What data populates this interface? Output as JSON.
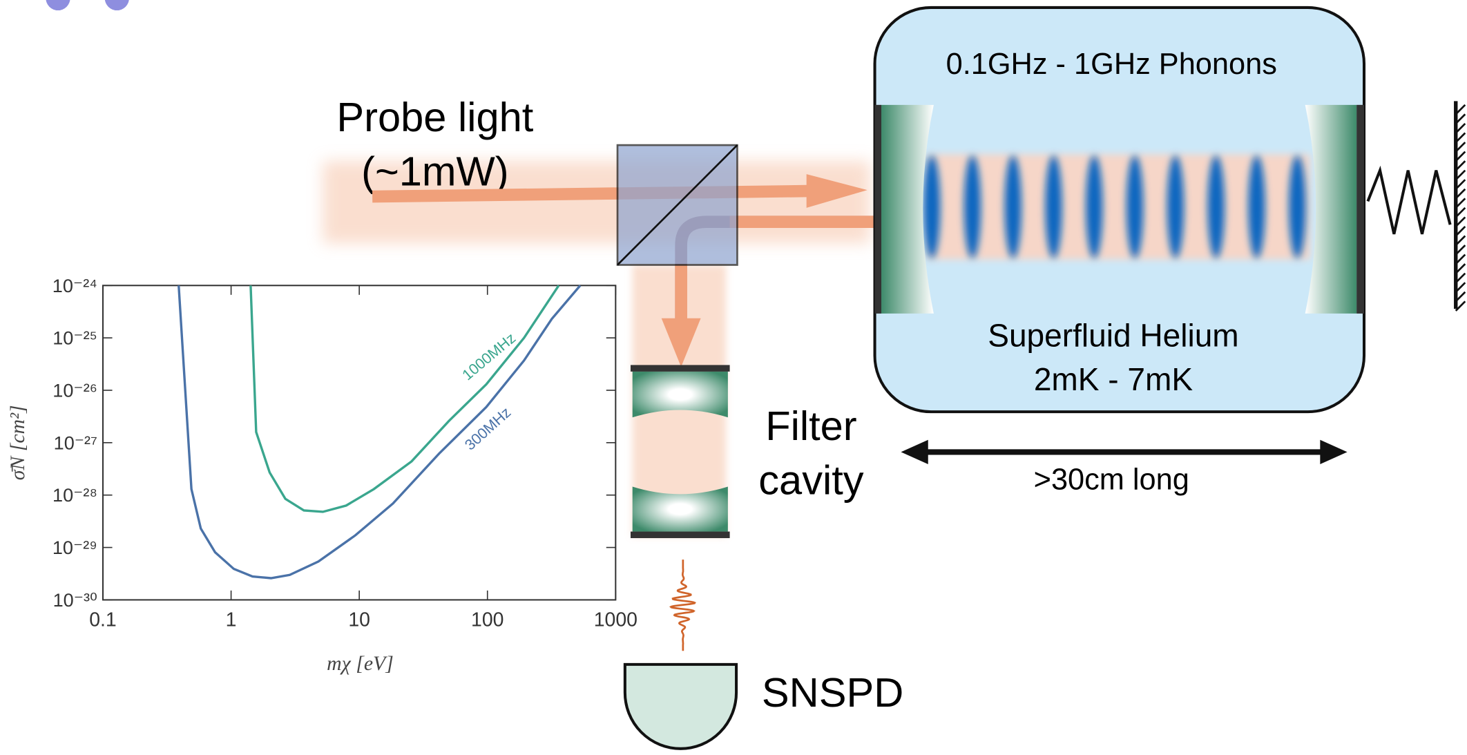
{
  "labels": {
    "probe_line1": "Probe light",
    "probe_line2": "(~1mW)",
    "filter_line1": "Filter",
    "filter_line2": "cavity",
    "detector": "SNSPD",
    "phonons": "0.1GHz - 1GHz Phonons",
    "medium_line1": "Superfluid Helium",
    "medium_line2": "2mK - 7mK",
    "length": ">30cm long"
  },
  "chart_data": {
    "type": "line",
    "x_label": "mχ [eV]",
    "y_label": "σ̄N [cm²]",
    "log_x": true,
    "log_y": true,
    "xlim": [
      0.1,
      1000
    ],
    "ylim": [
      1e-30,
      1e-24
    ],
    "xticks": [
      0.1,
      1,
      10,
      100,
      1000
    ],
    "yticks": [
      {
        "value": 1e-30,
        "label": "10⁻³⁰"
      },
      {
        "value": 1e-29,
        "label": "10⁻²⁹"
      },
      {
        "value": 1e-28,
        "label": "10⁻²⁸"
      },
      {
        "value": 1e-27,
        "label": "10⁻²⁷"
      },
      {
        "value": 1e-26,
        "label": "10⁻²⁶"
      },
      {
        "value": 1e-25,
        "label": "10⁻²⁵"
      },
      {
        "value": 1e-24,
        "label": "10⁻²⁴"
      }
    ],
    "series": [
      {
        "name": "300MHz",
        "color": "#4a72a8",
        "x": [
          0.39,
          0.49,
          0.58,
          0.75,
          1.05,
          1.47,
          2.05,
          2.87,
          4.8,
          9.3,
          18.3,
          42,
          98,
          193,
          318,
          530
        ],
        "values": [
          1e-24,
          1.3e-28,
          2.3e-29,
          8.1e-30,
          3.9e-30,
          2.8e-30,
          2.6e-30,
          3e-30,
          5.4e-30,
          1.7e-29,
          6.9e-29,
          6.2e-28,
          4.8e-27,
          3.7e-26,
          2.3e-25,
          1e-24
        ]
      },
      {
        "name": "1000MHz",
        "color": "#3aa68e",
        "x": [
          1.42,
          1.57,
          2.0,
          2.65,
          3.7,
          5.2,
          7.9,
          13,
          25.6,
          50,
          98,
          193,
          360
        ],
        "values": [
          1e-24,
          1.6e-27,
          2.7e-28,
          8.5e-29,
          5.1e-29,
          4.8e-29,
          6.3e-29,
          1.3e-28,
          4.4e-28,
          2.6e-27,
          1.3e-26,
          1e-25,
          1e-24
        ]
      }
    ]
  }
}
